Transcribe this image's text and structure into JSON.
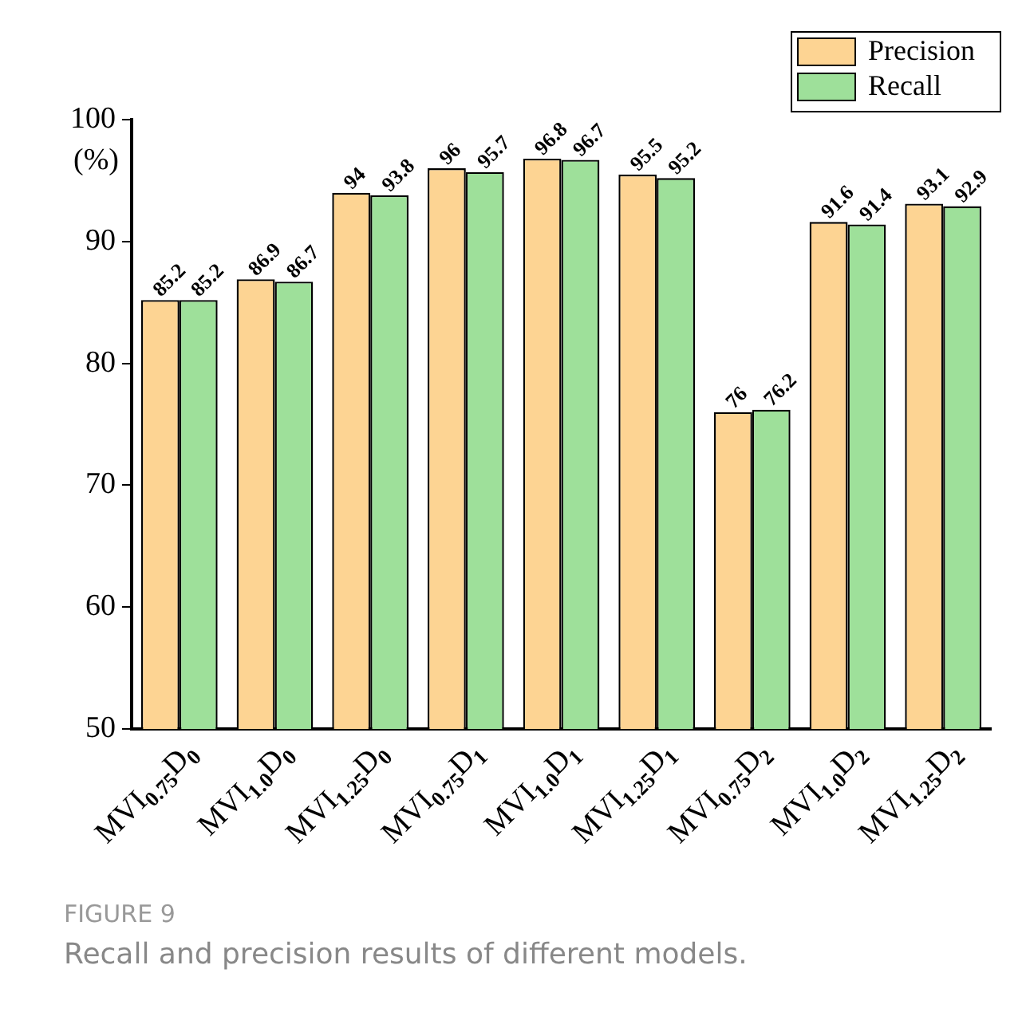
{
  "chart_data": {
    "type": "bar",
    "ylabel": "(%)",
    "categories": [
      "MVI$_{0.75}$D$_{0}$",
      "MVI$_{1.0}$D$_{0}$",
      "MVI$_{1.25}$D$_{0}$",
      "MVI$_{0.75}$D$_{1}$",
      "MVI$_{1.0}$D$_{1}$",
      "MVI$_{1.25}$D$_{1}$",
      "MVI$_{0.75}$D$_{2}$",
      "MVI$_{1.0}$D$_{2}$",
      "MVI$_{1.25}$D$_{2}$"
    ],
    "series": [
      {
        "name": "Precision",
        "color": "#fdd493",
        "values": [
          85.2,
          86.9,
          94,
          96,
          96.8,
          95.5,
          76,
          91.6,
          93.1
        ]
      },
      {
        "name": "Recall",
        "color": "#9ee09a",
        "values": [
          85.2,
          86.7,
          93.8,
          95.7,
          96.7,
          95.2,
          76.2,
          91.4,
          92.9
        ]
      }
    ],
    "ylim": [
      50,
      100
    ],
    "yticks": [
      50,
      60,
      70,
      80,
      90,
      100
    ],
    "grid": false,
    "legend": "top right",
    "data_labels": true,
    "annotations": [
      "FIGURE 9",
      "Recall and precision results of different models."
    ]
  }
}
